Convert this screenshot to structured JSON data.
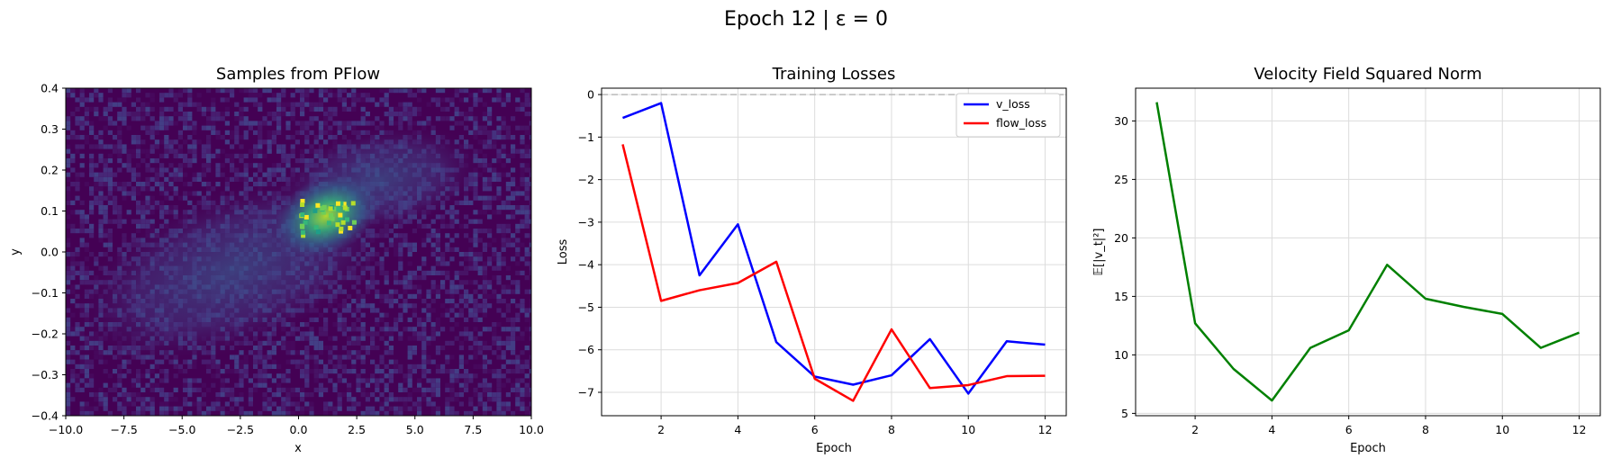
{
  "figure": {
    "suptitle": "Epoch 12 | ε = 0"
  },
  "chart_data": [
    {
      "type": "heatmap",
      "title": "Samples from PFlow",
      "xlabel": "x",
      "ylabel": "y",
      "xlim": [
        -10.0,
        10.0
      ],
      "ylim": [
        -0.4,
        0.4
      ],
      "xticks": [
        "−10.0",
        "−7.5",
        "−5.0",
        "−2.5",
        "0.0",
        "2.5",
        "5.0",
        "7.5",
        "10.0"
      ],
      "yticks": [
        "−0.4",
        "−0.3",
        "−0.2",
        "−0.1",
        "0.0",
        "0.1",
        "0.2",
        "0.3",
        "0.4"
      ],
      "colormap": "viridis",
      "grid": false
    },
    {
      "type": "line",
      "title": "Training Losses",
      "xlabel": "Epoch",
      "ylabel": "Loss",
      "x": [
        1,
        2,
        3,
        4,
        5,
        6,
        7,
        8,
        9,
        10,
        11,
        12
      ],
      "xlim": [
        0.45,
        12.55
      ],
      "ylim": [
        -7.55,
        0.15
      ],
      "xticks": [
        "2",
        "4",
        "6",
        "8",
        "10",
        "12"
      ],
      "yticks": [
        "0",
        "−1",
        "−2",
        "−3",
        "−4",
        "−5",
        "−6",
        "−7"
      ],
      "reference_line": {
        "y": 0,
        "style": "dashed",
        "color": "#bbbbbb"
      },
      "series": [
        {
          "name": "v_loss",
          "color": "#0000ff",
          "values": [
            -0.55,
            -0.2,
            -4.25,
            -3.05,
            -5.82,
            -6.63,
            -6.82,
            -6.6,
            -5.75,
            -7.03,
            -5.8,
            -5.88
          ]
        },
        {
          "name": "flow_loss",
          "color": "#ff0000",
          "values": [
            -1.17,
            -4.85,
            -4.6,
            -4.43,
            -3.93,
            -6.68,
            -7.2,
            -5.52,
            -6.9,
            -6.83,
            -6.62,
            -6.61
          ]
        }
      ],
      "legend": "top-right",
      "grid": true
    },
    {
      "type": "line",
      "title": "Velocity Field Squared Norm",
      "xlabel": "Epoch",
      "ylabel": "𝔼[|v_t|²]",
      "x": [
        1,
        2,
        3,
        4,
        5,
        6,
        7,
        8,
        9,
        10,
        11,
        12
      ],
      "xlim": [
        0.45,
        12.55
      ],
      "ylim": [
        4.8,
        32.8
      ],
      "xticks": [
        "2",
        "4",
        "6",
        "8",
        "10",
        "12"
      ],
      "yticks": [
        "5",
        "10",
        "15",
        "20",
        "25",
        "30"
      ],
      "series": [
        {
          "color": "#008000",
          "values": [
            31.6,
            12.7,
            8.8,
            6.1,
            10.6,
            12.1,
            17.7,
            14.8,
            14.1,
            13.5,
            10.6,
            11.9
          ]
        }
      ],
      "grid": true
    }
  ]
}
